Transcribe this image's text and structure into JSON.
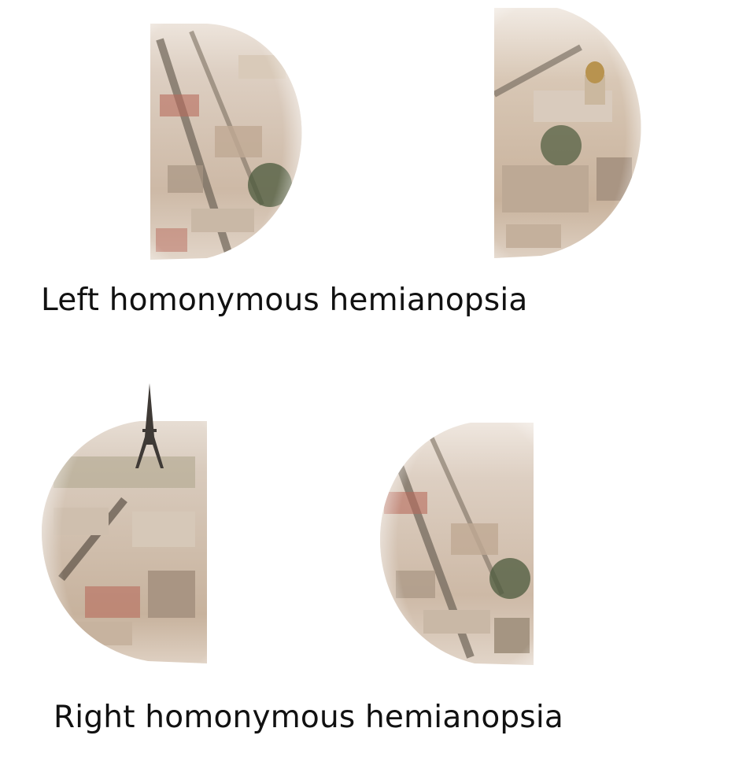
{
  "captions": {
    "left": "Left homonymous hemianopsia",
    "right": "Right homonymous hemianopsia"
  },
  "panels": [
    {
      "condition": "left",
      "eye": "left",
      "scene": "aerial-city-view",
      "visible_half": "right"
    },
    {
      "condition": "left",
      "eye": "right",
      "scene": "aerial-city-view-with-dome",
      "visible_half": "right"
    },
    {
      "condition": "right",
      "eye": "left",
      "scene": "aerial-city-view-with-eiffel-tower",
      "visible_half": "left"
    },
    {
      "condition": "right",
      "eye": "right",
      "scene": "aerial-city-view",
      "visible_half": "left"
    }
  ],
  "colors": {
    "background": "#ffffff",
    "text": "#111111",
    "city_light": "#e8ddd2",
    "city_mid": "#c9b8a6",
    "city_dark": "#6e6458",
    "city_red": "#b86a5c",
    "greenery": "#4b5a3c"
  }
}
